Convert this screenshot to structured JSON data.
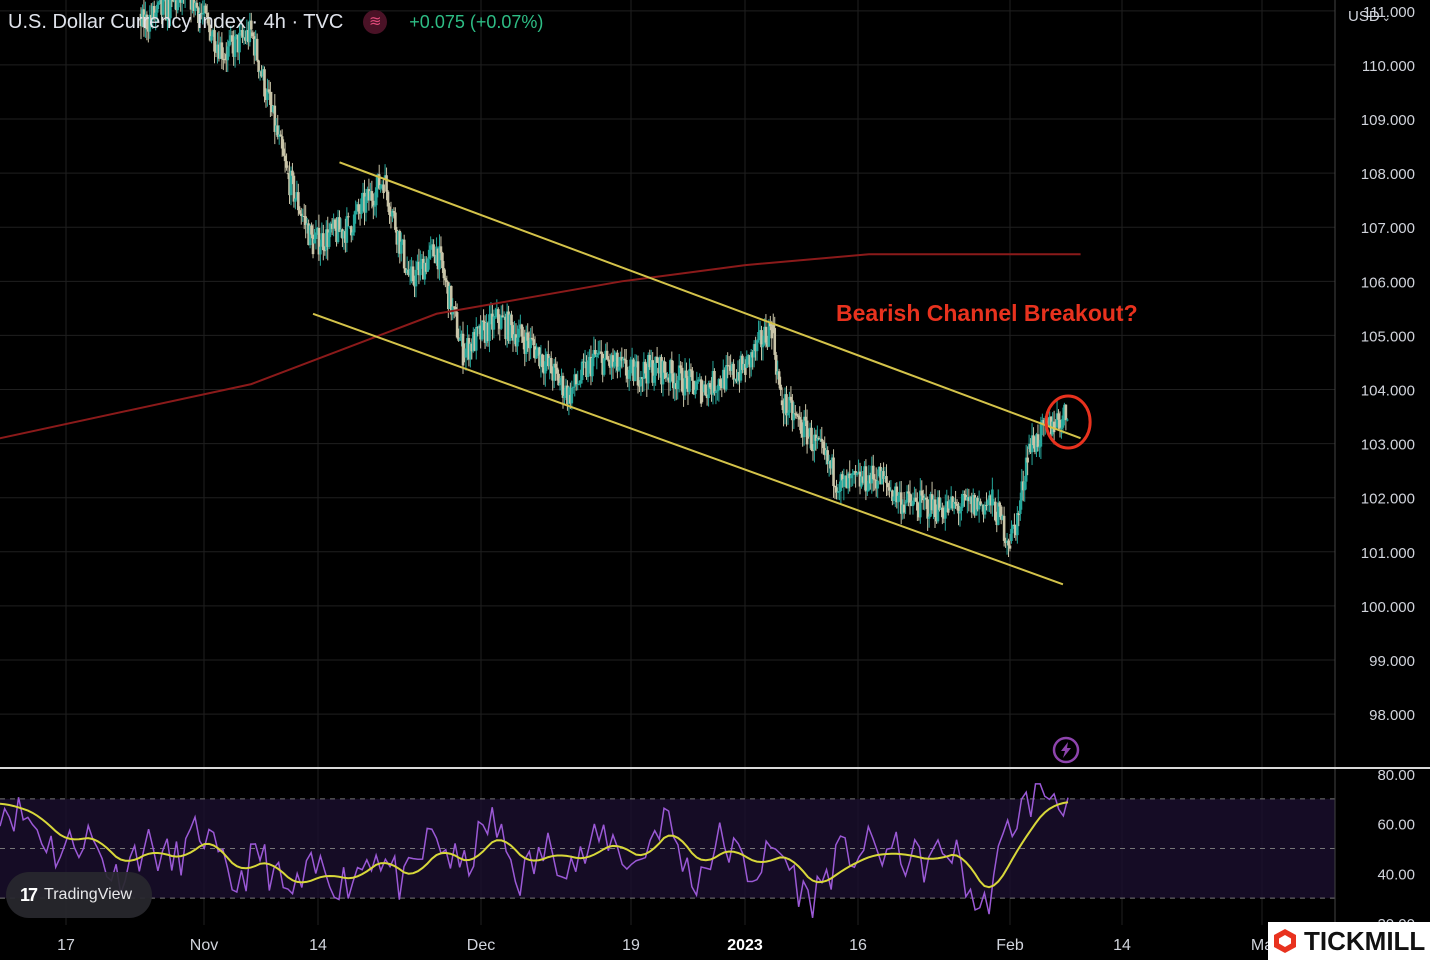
{
  "header": {
    "title": "U.S. Dollar Currency Index · 4h · TVC",
    "change": "+0.075 (+0.07%)"
  },
  "currency_selector": "USD",
  "annotation": "Bearish Channel Breakout?",
  "badges": {
    "tradingview": "TradingView",
    "tickmill": "TICKMILL"
  },
  "colors": {
    "background": "#000000",
    "up_candle": "#26a69a",
    "down_candle": "#c9c4a8",
    "channel_lines": "#d4c34a",
    "moving_average": "#8b1a1a",
    "annotation": "#e8321e",
    "rsi": "#9b59d6",
    "rsi_signal": "#d8d83a",
    "grid": "#1f1f1f"
  },
  "icons": {
    "symbol": "tv-symbol-icon",
    "flash": "lightning-icon",
    "chevron": "chevron-down-icon"
  },
  "chart_data": {
    "type": "candlestick",
    "title": "U.S. Dollar Currency Index · 4h · TVC",
    "x_ticks": [
      "17",
      "Nov",
      "14",
      "Dec",
      "19",
      "2023",
      "16",
      "Feb",
      "14",
      "Ma"
    ],
    "y_ticks": [
      "111.000",
      "110.000",
      "109.000",
      "108.000",
      "107.000",
      "106.000",
      "105.000",
      "104.000",
      "103.000",
      "102.000",
      "101.000",
      "100.000",
      "99.000",
      "98.000"
    ],
    "ylim": [
      97.6,
      111.2
    ],
    "dates": [
      "2022-10-10",
      "2022-10-17",
      "2022-10-24",
      "2022-10-31",
      "2022-11-04",
      "2022-11-07",
      "2022-11-11",
      "2022-11-14",
      "2022-11-18",
      "2022-11-22",
      "2022-11-25",
      "2022-11-28",
      "2022-12-01",
      "2022-12-05",
      "2022-12-09",
      "2022-12-13",
      "2022-12-16",
      "2022-12-20",
      "2022-12-23",
      "2022-12-28",
      "2023-01-02",
      "2023-01-05",
      "2023-01-06",
      "2023-01-09",
      "2023-01-13",
      "2023-01-17",
      "2023-01-20",
      "2023-01-25",
      "2023-01-30",
      "2023-02-01",
      "2023-02-02",
      "2023-02-03",
      "2023-02-06",
      "2023-02-08"
    ],
    "close": [
      112.2,
      112.8,
      110.6,
      111.3,
      110.2,
      110.6,
      108.0,
      106.7,
      107.0,
      107.9,
      106.0,
      106.6,
      104.7,
      105.3,
      104.8,
      103.9,
      104.6,
      104.3,
      104.4,
      104.0,
      104.4,
      105.2,
      103.8,
      103.2,
      102.2,
      102.4,
      101.9,
      101.8,
      101.9,
      101.2,
      101.7,
      102.9,
      103.4,
      103.6
    ],
    "channel": {
      "upper": {
        "start": [
          "2022-11-17",
          108.2
        ],
        "end": [
          "2023-02-09",
          103.1
        ]
      },
      "lower": {
        "start": [
          "2022-11-14",
          105.4
        ],
        "end": [
          "2023-02-07",
          100.4
        ]
      }
    },
    "moving_average": {
      "points": [
        [
          "2022-10-01",
          102.8
        ],
        [
          "2022-11-07",
          104.1
        ],
        [
          "2022-11-28",
          105.4
        ],
        [
          "2022-12-19",
          106.0
        ],
        [
          "2023-01-02",
          106.3
        ],
        [
          "2023-01-16",
          106.5
        ],
        [
          "2023-02-09",
          106.5
        ]
      ]
    },
    "highlight": {
      "date": "2023-02-06",
      "value": 103.4
    },
    "rsi": {
      "y_ticks": [
        "80.00",
        "60.00",
        "40.00",
        "20.00"
      ],
      "levels": [
        70,
        30
      ],
      "ylim": [
        20,
        80
      ],
      "values": [
        68,
        62,
        48,
        56,
        38,
        52,
        44,
        58,
        34,
        48,
        30,
        42,
        36,
        50,
        34,
        56,
        40,
        62,
        38,
        50,
        44,
        56,
        42,
        64,
        36,
        54,
        40,
        50,
        28,
        46,
        50,
        48,
        44,
        50,
        22,
        60,
        74,
        70
      ]
    }
  }
}
